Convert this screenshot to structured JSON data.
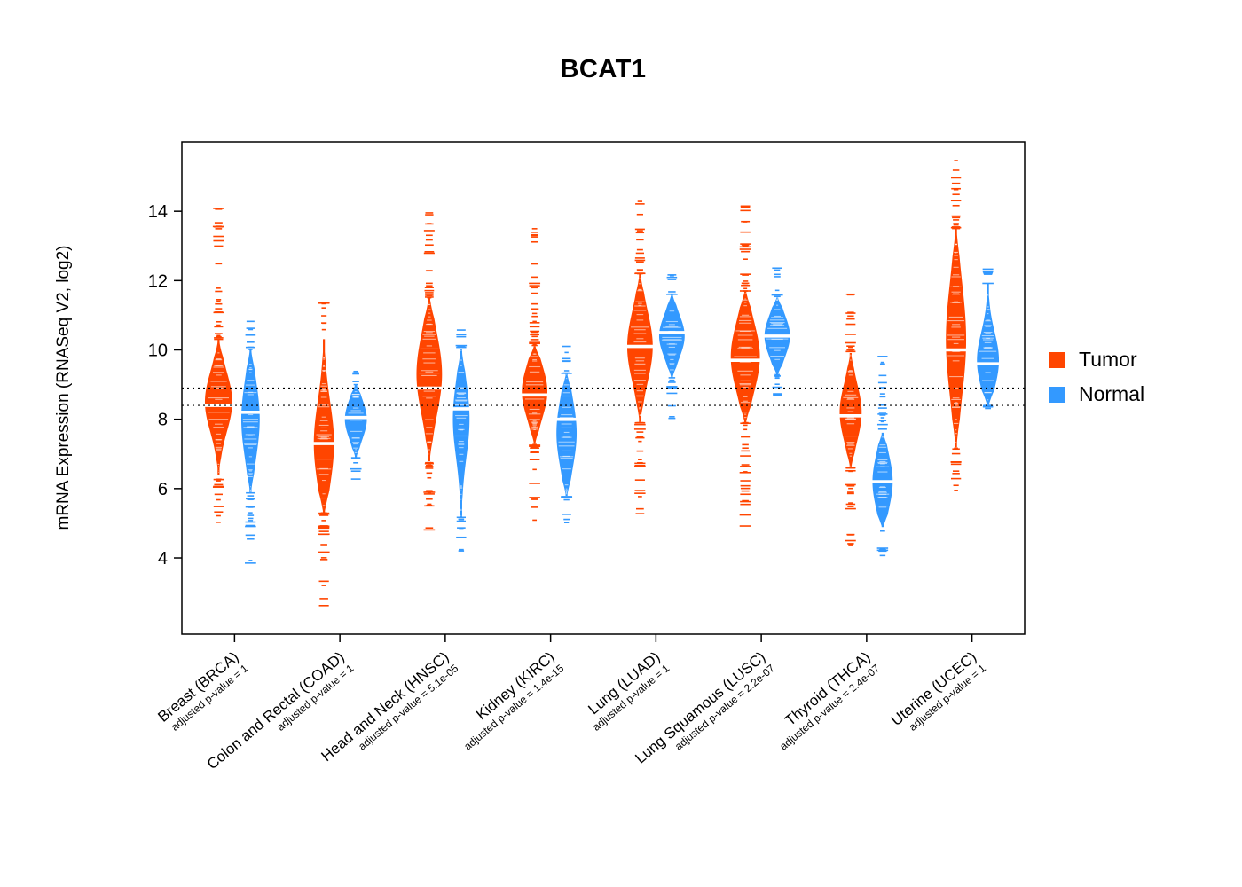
{
  "chart_data": {
    "type": "violin",
    "title": "BCAT1",
    "ylabel": "mRNA Expression (RNASeq V2, log2)",
    "ylim": [
      1.8,
      16.0
    ],
    "yticks": [
      4,
      6,
      8,
      10,
      12,
      14
    ],
    "hlines": [
      8.9,
      8.4
    ],
    "legend": [
      {
        "label": "Tumor",
        "color": "#FF4500"
      },
      {
        "label": "Normal",
        "color": "#3399FF"
      }
    ],
    "categories": [
      {
        "label": "Breast (BRCA)",
        "pvalue_label": "adjusted p-value = 1",
        "tumor": {
          "median": 8.4,
          "mean": 8.5,
          "sd": 0.85,
          "body": [
            6.4,
            10.3
          ],
          "tail": [
            4.8,
            14.1
          ],
          "width": 0.75
        },
        "normal": {
          "median": 8.2,
          "mean": 8.0,
          "sd": 1.1,
          "body": [
            5.9,
            10.0
          ],
          "tail": [
            3.7,
            11.0
          ],
          "width": 0.5
        }
      },
      {
        "label": "Colon and Rectal (COAD)",
        "pvalue_label": "adjusted p-value = 1",
        "tumor": {
          "median": 7.3,
          "mean": 7.3,
          "sd": 1.2,
          "body": [
            5.3,
            10.3
          ],
          "tail": [
            2.6,
            11.4
          ],
          "width": 0.55
        },
        "normal": {
          "median": 8.05,
          "mean": 8.0,
          "sd": 0.55,
          "body": [
            6.9,
            9.0
          ],
          "tail": [
            6.1,
            9.6
          ],
          "width": 0.6
        }
      },
      {
        "label": "Head and Neck (HNSC)",
        "pvalue_label": "adjusted p-value = 5.1e-05",
        "tumor": {
          "median": 8.9,
          "mean": 9.3,
          "sd": 1.15,
          "body": [
            6.8,
            11.5
          ],
          "tail": [
            4.3,
            14.1
          ],
          "width": 0.7
        },
        "normal": {
          "median": 8.3,
          "mean": 8.0,
          "sd": 1.1,
          "body": [
            5.2,
            10.0
          ],
          "tail": [
            4.1,
            10.7
          ],
          "width": 0.45
        },
        "significant": true
      },
      {
        "label": "Kidney (KIRC)",
        "pvalue_label": "adjusted p-value = 1.4e-15",
        "tumor": {
          "median": 8.7,
          "mean": 8.8,
          "sd": 0.75,
          "body": [
            7.3,
            10.1
          ],
          "tail": [
            5.0,
            14.1
          ],
          "width": 0.7
        },
        "normal": {
          "median": 8.0,
          "mean": 7.6,
          "sd": 1.0,
          "body": [
            5.8,
            9.3
          ],
          "tail": [
            4.9,
            10.3
          ],
          "width": 0.55
        },
        "significant": true
      },
      {
        "label": "Lung (LUAD)",
        "pvalue_label": "adjusted p-value = 1",
        "tumor": {
          "median": 10.1,
          "mean": 10.1,
          "sd": 1.0,
          "body": [
            7.9,
            12.2
          ],
          "tail": [
            5.1,
            14.6
          ],
          "width": 0.7
        },
        "normal": {
          "median": 10.5,
          "mean": 10.4,
          "sd": 0.6,
          "body": [
            9.2,
            11.6
          ],
          "tail": [
            7.9,
            12.5
          ],
          "width": 0.7
        }
      },
      {
        "label": "Lung Squamous (LUSC)",
        "pvalue_label": "adjusted p-value = 2.2e-07",
        "tumor": {
          "median": 9.7,
          "mean": 9.8,
          "sd": 1.0,
          "body": [
            7.9,
            11.7
          ],
          "tail": [
            4.9,
            14.4
          ],
          "width": 0.8
        },
        "normal": {
          "median": 10.4,
          "mean": 10.4,
          "sd": 0.6,
          "body": [
            9.3,
            11.5
          ],
          "tail": [
            8.2,
            12.4
          ],
          "width": 0.7
        },
        "significant": true
      },
      {
        "label": "Thyroid (THCA)",
        "pvalue_label": "adjusted p-value = 2.4e-07",
        "tumor": {
          "median": 8.1,
          "mean": 8.2,
          "sd": 0.8,
          "body": [
            6.6,
            9.9
          ],
          "tail": [
            4.2,
            11.7
          ],
          "width": 0.6
        },
        "normal": {
          "median": 6.2,
          "mean": 6.2,
          "sd": 0.8,
          "body": [
            4.9,
            7.6
          ],
          "tail": [
            4.0,
            10.0
          ],
          "width": 0.55
        },
        "significant": true
      },
      {
        "label": "Uterine (UCEC)",
        "pvalue_label": "adjusted p-value = 1",
        "tumor": {
          "median": 10.0,
          "mean": 10.3,
          "sd": 1.6,
          "body": [
            7.2,
            13.5
          ],
          "tail": [
            5.8,
            15.6
          ],
          "width": 0.55
        },
        "normal": {
          "median": 9.6,
          "mean": 9.7,
          "sd": 0.8,
          "body": [
            8.4,
            11.9
          ],
          "tail": [
            8.3,
            12.7
          ],
          "width": 0.6
        }
      }
    ]
  }
}
